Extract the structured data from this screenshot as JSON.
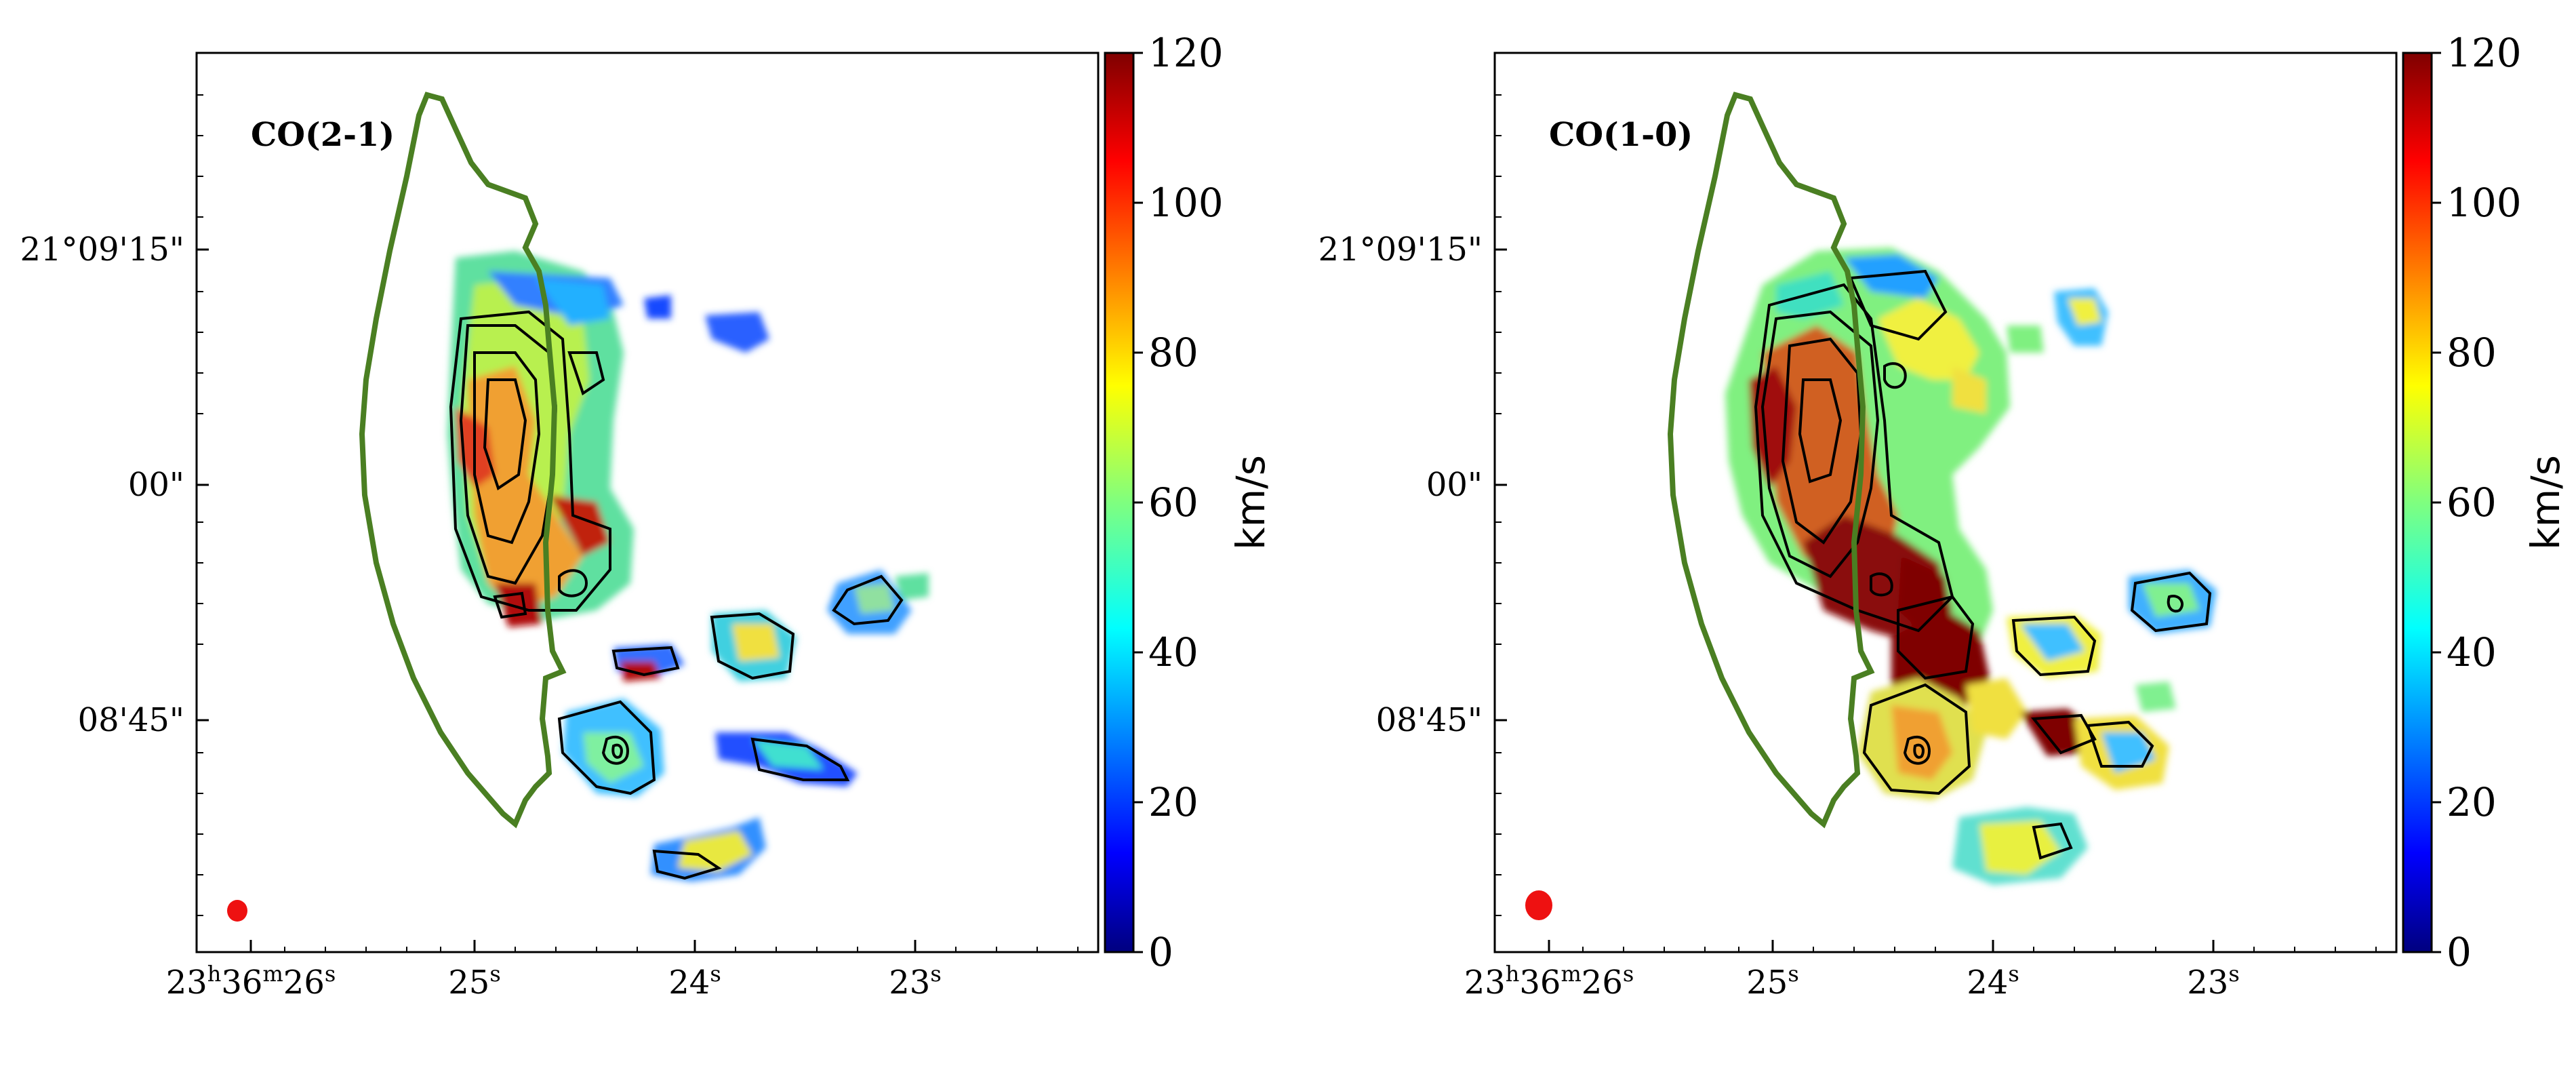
{
  "chart_data": [
    {
      "type": "heatmap",
      "title": "CO(2-1)",
      "xlabel": "",
      "ylabel": "",
      "x_ticks": [
        {
          "hh": "23",
          "mm": "36",
          "ss": "26"
        },
        {
          "ss": "25"
        },
        {
          "ss": "24"
        },
        {
          "ss": "23"
        }
      ],
      "y_ticks": [
        "21°09'15\"",
        "00\"",
        "08'45\""
      ],
      "colorbar": {
        "label": "km/s",
        "min": 0,
        "max": 120,
        "ticks": [
          0,
          20,
          40,
          60,
          80,
          100,
          120
        ],
        "colormap": "jet"
      },
      "beam_color": "#e11",
      "outline_color": "#4a7f22"
    },
    {
      "type": "heatmap",
      "title": "CO(1-0)",
      "xlabel": "",
      "ylabel": "",
      "x_ticks": [
        {
          "hh": "23",
          "mm": "36",
          "ss": "26"
        },
        {
          "ss": "25"
        },
        {
          "ss": "24"
        },
        {
          "ss": "23"
        }
      ],
      "y_ticks": [
        "21°09'15\"",
        "00\"",
        "08'45\""
      ],
      "colorbar": {
        "label": "km/s",
        "min": 0,
        "max": 120,
        "ticks": [
          0,
          20,
          40,
          60,
          80,
          100,
          120
        ],
        "colormap": "jet"
      },
      "beam_color": "#e11",
      "outline_color": "#4a7f22"
    }
  ]
}
